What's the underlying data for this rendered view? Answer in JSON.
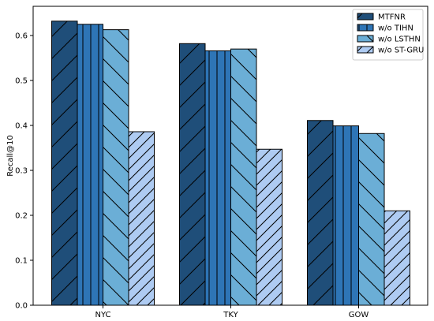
{
  "chart_data": {
    "type": "bar",
    "title": "",
    "xlabel": "",
    "ylabel": "Recall@10",
    "ylim": [
      0,
      0.665
    ],
    "yticks": [
      0.0,
      0.1,
      0.2,
      0.3,
      0.4,
      0.5,
      0.6
    ],
    "ytick_labels": [
      "0.0",
      "0.1",
      "0.2",
      "0.3",
      "0.4",
      "0.5",
      "0.6"
    ],
    "categories": [
      "NYC",
      "TKY",
      "GOW"
    ],
    "grid": false,
    "legend_position": "top-right",
    "series": [
      {
        "name": "MTFNR",
        "values": [
          0.632,
          0.582,
          0.411
        ],
        "color": "#1f4e79",
        "hatch": "forward-diagonal"
      },
      {
        "name": "w/o TIHN",
        "values": [
          0.625,
          0.566,
          0.399
        ],
        "color": "#2e75b6",
        "hatch": "vertical"
      },
      {
        "name": "w/o LSTHN",
        "values": [
          0.613,
          0.57,
          0.382
        ],
        "color": "#6baed6",
        "hatch": "back-diagonal"
      },
      {
        "name": "w/o ST-GRU",
        "values": [
          0.386,
          0.347,
          0.21
        ],
        "color": "#aecbf2",
        "hatch": "dense-forward-diagonal"
      }
    ]
  }
}
